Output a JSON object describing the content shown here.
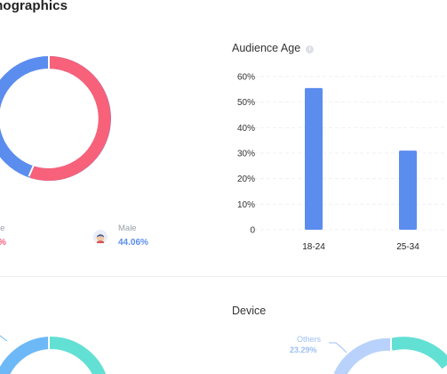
{
  "header": {
    "title": "mographics"
  },
  "gender": {
    "female": {
      "label": "le",
      "value": "%",
      "color": "#f7617a"
    },
    "male": {
      "label": "Male",
      "value": "44.06%",
      "color": "#5b8def"
    }
  },
  "audience_age": {
    "title": "Audience Age"
  },
  "device": {
    "title": "Device",
    "others_label": "Others",
    "others_value": "23.29%"
  },
  "colors": {
    "pink": "#f7617a",
    "blue": "#5b8def",
    "teal": "#62e0d4",
    "light_blue": "#6db8f7",
    "pale_blue": "#b9d2fb"
  },
  "chart_data": [
    {
      "type": "pie",
      "title": "",
      "series": [
        {
          "name": "Male",
          "value": 44.06,
          "color": "#5b8def"
        },
        {
          "name": "",
          "value": 55.94,
          "color": "#f7617a"
        }
      ]
    },
    {
      "type": "bar",
      "title": "Audience Age",
      "categories": [
        "18-24",
        "25-34"
      ],
      "values": [
        55.5,
        31
      ],
      "yticks": [
        "60%",
        "50%",
        "40%",
        "30%",
        "20%",
        "10%",
        "0"
      ],
      "ylim": [
        0,
        60
      ],
      "grid": true
    }
  ]
}
